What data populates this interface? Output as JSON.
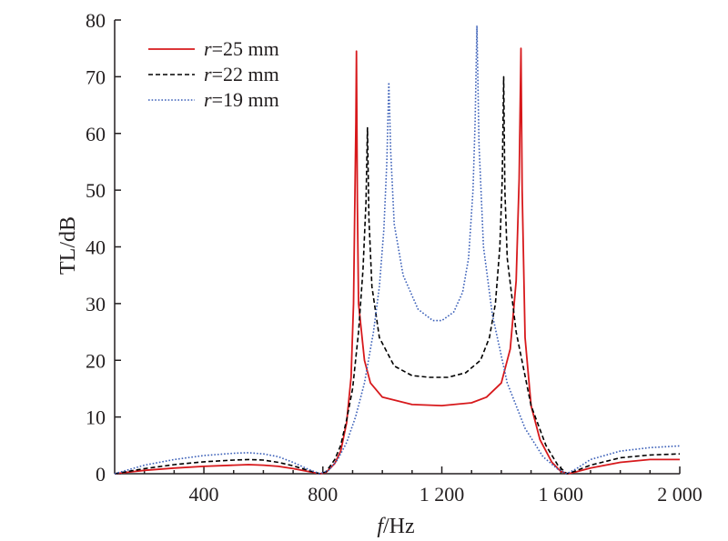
{
  "chart_data": {
    "type": "line",
    "xlabel": {
      "italic": "f",
      "rest": "/Hz"
    },
    "ylabel": "TL/dB",
    "xlim": [
      100,
      2000
    ],
    "ylim": [
      0,
      80
    ],
    "x_ticks": [
      {
        "value": 400,
        "label": "400"
      },
      {
        "value": 800,
        "label": "800"
      },
      {
        "value": 1200,
        "label": "1 200"
      },
      {
        "value": 1600,
        "label": "1 600"
      },
      {
        "value": 2000,
        "label": "2 000"
      }
    ],
    "y_ticks": [
      {
        "value": 0,
        "label": "0"
      },
      {
        "value": 10,
        "label": "10"
      },
      {
        "value": 20,
        "label": "20"
      },
      {
        "value": 30,
        "label": "30"
      },
      {
        "value": 40,
        "label": "40"
      },
      {
        "value": 50,
        "label": "50"
      },
      {
        "value": 60,
        "label": "60"
      },
      {
        "value": 70,
        "label": "70"
      },
      {
        "value": 80,
        "label": "80"
      }
    ],
    "legend_position": "top-left",
    "series": [
      {
        "name": "r=25 mm",
        "name_italic": "r",
        "name_rest": "=25 mm",
        "color": "#d7191c",
        "dash": "solid",
        "points": [
          [
            100,
            0.0
          ],
          [
            200,
            0.6
          ],
          [
            300,
            1.0
          ],
          [
            400,
            1.3
          ],
          [
            500,
            1.5
          ],
          [
            550,
            1.6
          ],
          [
            600,
            1.5
          ],
          [
            650,
            1.3
          ],
          [
            700,
            0.9
          ],
          [
            750,
            0.4
          ],
          [
            790,
            0.0
          ],
          [
            810,
            0.2
          ],
          [
            840,
            1.8
          ],
          [
            860,
            4.0
          ],
          [
            880,
            9.0
          ],
          [
            895,
            17
          ],
          [
            903,
            30
          ],
          [
            908,
            50
          ],
          [
            911,
            62
          ],
          [
            913,
            74.5
          ],
          [
            916,
            48
          ],
          [
            920,
            30
          ],
          [
            940,
            20
          ],
          [
            960,
            16
          ],
          [
            1000,
            13.5
          ],
          [
            1100,
            12.2
          ],
          [
            1200,
            12.0
          ],
          [
            1300,
            12.5
          ],
          [
            1350,
            13.5
          ],
          [
            1400,
            16
          ],
          [
            1430,
            22
          ],
          [
            1450,
            34
          ],
          [
            1460,
            52
          ],
          [
            1466,
            75
          ],
          [
            1470,
            50
          ],
          [
            1480,
            24
          ],
          [
            1500,
            12
          ],
          [
            1530,
            6
          ],
          [
            1570,
            2.0
          ],
          [
            1600,
            0.4
          ],
          [
            1625,
            0.0
          ],
          [
            1650,
            0.3
          ],
          [
            1700,
            1.0
          ],
          [
            1800,
            2.0
          ],
          [
            1900,
            2.5
          ],
          [
            2000,
            2.5
          ]
        ]
      },
      {
        "name": "r=22 mm",
        "name_italic": "r",
        "name_rest": "=22 mm",
        "color": "#000000",
        "dash": "dashed",
        "points": [
          [
            100,
            0.0
          ],
          [
            200,
            0.9
          ],
          [
            300,
            1.6
          ],
          [
            400,
            2.1
          ],
          [
            500,
            2.4
          ],
          [
            550,
            2.5
          ],
          [
            600,
            2.4
          ],
          [
            650,
            2.0
          ],
          [
            700,
            1.4
          ],
          [
            750,
            0.6
          ],
          [
            790,
            0.0
          ],
          [
            810,
            0.3
          ],
          [
            840,
            2.5
          ],
          [
            860,
            5.0
          ],
          [
            880,
            9.5
          ],
          [
            900,
            15
          ],
          [
            920,
            25
          ],
          [
            935,
            36
          ],
          [
            945,
            48
          ],
          [
            950,
            61
          ],
          [
            955,
            45
          ],
          [
            965,
            33
          ],
          [
            990,
            24
          ],
          [
            1040,
            19
          ],
          [
            1100,
            17.3
          ],
          [
            1160,
            17.0
          ],
          [
            1220,
            17.0
          ],
          [
            1280,
            17.8
          ],
          [
            1330,
            20
          ],
          [
            1360,
            24
          ],
          [
            1380,
            30
          ],
          [
            1395,
            40
          ],
          [
            1403,
            52
          ],
          [
            1408,
            70
          ],
          [
            1412,
            50
          ],
          [
            1420,
            38
          ],
          [
            1450,
            25
          ],
          [
            1500,
            12
          ],
          [
            1550,
            5
          ],
          [
            1590,
            1.5
          ],
          [
            1620,
            0.0
          ],
          [
            1650,
            0.5
          ],
          [
            1700,
            1.5
          ],
          [
            1800,
            2.8
          ],
          [
            1900,
            3.3
          ],
          [
            2000,
            3.5
          ]
        ]
      },
      {
        "name": "r=19 mm",
        "name_italic": "r",
        "name_rest": "=19 mm",
        "color": "#3a5fb8",
        "dash": "dotted",
        "points": [
          [
            100,
            0.0
          ],
          [
            200,
            1.5
          ],
          [
            300,
            2.5
          ],
          [
            400,
            3.2
          ],
          [
            500,
            3.6
          ],
          [
            550,
            3.7
          ],
          [
            600,
            3.5
          ],
          [
            650,
            3.0
          ],
          [
            700,
            2.0
          ],
          [
            750,
            0.8
          ],
          [
            790,
            0.0
          ],
          [
            820,
            0.6
          ],
          [
            850,
            2.5
          ],
          [
            880,
            5.5
          ],
          [
            910,
            10
          ],
          [
            940,
            16
          ],
          [
            970,
            25
          ],
          [
            990,
            33
          ],
          [
            1005,
            43
          ],
          [
            1015,
            55
          ],
          [
            1022,
            69
          ],
          [
            1028,
            57
          ],
          [
            1040,
            44
          ],
          [
            1070,
            35
          ],
          [
            1120,
            29
          ],
          [
            1170,
            27
          ],
          [
            1200,
            27
          ],
          [
            1240,
            28.5
          ],
          [
            1270,
            32
          ],
          [
            1290,
            38
          ],
          [
            1305,
            50
          ],
          [
            1312,
            62
          ],
          [
            1318,
            79
          ],
          [
            1325,
            58
          ],
          [
            1340,
            40
          ],
          [
            1370,
            28
          ],
          [
            1420,
            16
          ],
          [
            1480,
            8
          ],
          [
            1540,
            3
          ],
          [
            1590,
            0.8
          ],
          [
            1620,
            0.0
          ],
          [
            1650,
            0.8
          ],
          [
            1700,
            2.5
          ],
          [
            1800,
            4.0
          ],
          [
            1900,
            4.6
          ],
          [
            2000,
            4.9
          ]
        ]
      }
    ]
  }
}
